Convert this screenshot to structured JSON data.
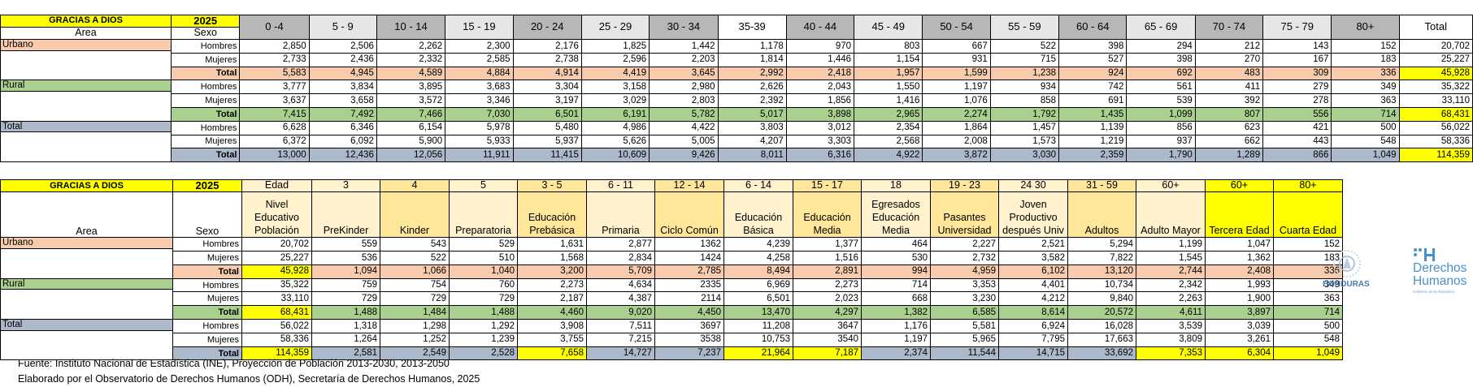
{
  "table1": {
    "title": "GRACIAS A DIOS",
    "year": "2025",
    "area_label": "Area",
    "sexo_label": "Sexo",
    "age_groups": [
      "0 -4",
      "5 - 9",
      "10 - 14",
      "15 - 19",
      "20 - 24",
      "25 - 29",
      "30 - 34",
      "35-39",
      "40 - 44",
      "45 - 49",
      "50 - 54",
      "55 - 59",
      "60 - 64",
      "65 - 69",
      "70 - 74",
      "75 - 79",
      "80+",
      "Total"
    ],
    "sections": [
      {
        "area": "Urbano",
        "rows": [
          {
            "sexo": "Hombres",
            "values": [
              "2,850",
              "2,506",
              "2,262",
              "2,300",
              "2,176",
              "1,825",
              "1,442",
              "1,178",
              "970",
              "803",
              "667",
              "522",
              "398",
              "294",
              "212",
              "143",
              "152",
              "20,702"
            ]
          },
          {
            "sexo": "Mujeres",
            "values": [
              "2,733",
              "2,436",
              "2,332",
              "2,585",
              "2,738",
              "2,596",
              "2,203",
              "1,814",
              "1,446",
              "1,154",
              "931",
              "715",
              "527",
              "398",
              "270",
              "167",
              "183",
              "25,227"
            ]
          },
          {
            "sexo": "Total",
            "values": [
              "5,583",
              "4,945",
              "4,589",
              "4,884",
              "4,914",
              "4,419",
              "3,645",
              "2,992",
              "2,418",
              "1,957",
              "1,599",
              "1,238",
              "924",
              "692",
              "483",
              "309",
              "336",
              "45,928"
            ]
          }
        ]
      },
      {
        "area": "Rural",
        "rows": [
          {
            "sexo": "Hombres",
            "values": [
              "3,777",
              "3,834",
              "3,895",
              "3,683",
              "3,304",
              "3,158",
              "2,980",
              "2,626",
              "2,043",
              "1,550",
              "1,197",
              "934",
              "742",
              "561",
              "411",
              "279",
              "349",
              "35,322"
            ]
          },
          {
            "sexo": "Mujeres",
            "values": [
              "3,637",
              "3,658",
              "3,572",
              "3,346",
              "3,197",
              "3,029",
              "2,803",
              "2,392",
              "1,856",
              "1,416",
              "1,076",
              "858",
              "691",
              "539",
              "392",
              "278",
              "363",
              "33,110"
            ]
          },
          {
            "sexo": "Total",
            "values": [
              "7,415",
              "7,492",
              "7,466",
              "7,030",
              "6,501",
              "6,191",
              "5,782",
              "5,017",
              "3,898",
              "2,965",
              "2,274",
              "1,792",
              "1,435",
              "1,099",
              "807",
              "556",
              "714",
              "68,431"
            ]
          }
        ]
      },
      {
        "area": "Total",
        "rows": [
          {
            "sexo": "Hombres",
            "values": [
              "6,628",
              "6,346",
              "6,154",
              "5,978",
              "5,480",
              "4,986",
              "4,422",
              "3,803",
              "3,012",
              "2,354",
              "1,864",
              "1,457",
              "1,139",
              "856",
              "623",
              "421",
              "500",
              "56,022"
            ]
          },
          {
            "sexo": "Mujeres",
            "values": [
              "6,372",
              "6,092",
              "5,900",
              "5,933",
              "5,937",
              "5,626",
              "5,005",
              "4,207",
              "3,303",
              "2,568",
              "2,008",
              "1,573",
              "1,219",
              "937",
              "662",
              "443",
              "548",
              "58,336"
            ]
          },
          {
            "sexo": "Total",
            "values": [
              "13,000",
              "12,436",
              "12,056",
              "11,911",
              "11,415",
              "10,609",
              "9,426",
              "8,011",
              "6,316",
              "4,922",
              "3,872",
              "3,030",
              "2,359",
              "1,790",
              "1,289",
              "866",
              "1,049",
              "114,359"
            ]
          }
        ]
      }
    ]
  },
  "table2": {
    "title": "GRACIAS A DIOS",
    "year": "2025",
    "area_label": "Area",
    "sexo_label": "Sexo",
    "age_headers": [
      "Edad",
      "3",
      "4",
      "5",
      "3 - 5",
      "6 - 11",
      "12 - 14",
      "6 - 14",
      "15 - 17",
      "18",
      "19 - 23",
      "24 30",
      "31 - 59",
      "60+",
      "60+",
      "80+"
    ],
    "level_headers": [
      "Nivel Educativo Población",
      "PreKinder",
      "Kinder",
      "Preparatoria",
      "Educación Prebásica",
      "Primaria",
      "Ciclo Común",
      "Educación Básica",
      "Educación Media",
      "Egresados Educación Media",
      "Pasantes Universidad",
      "Joven Productivo después Univ",
      "Adultos",
      "Adulto Mayor",
      "Tercera Edad",
      "Cuarta Edad"
    ],
    "sections": [
      {
        "area": "Urbano",
        "rows": [
          {
            "sexo": "Hombres",
            "values": [
              "20,702",
              "559",
              "543",
              "529",
              "1,631",
              "2,877",
              "1362",
              "4,239",
              "1,377",
              "464",
              "2,227",
              "2,521",
              "5,294",
              "1,199",
              "1,047",
              "152"
            ]
          },
          {
            "sexo": "Mujeres",
            "values": [
              "25,227",
              "536",
              "522",
              "510",
              "1,568",
              "2,834",
              "1424",
              "4,258",
              "1,516",
              "530",
              "2,732",
              "3,582",
              "7,822",
              "1,545",
              "1,362",
              "183"
            ]
          },
          {
            "sexo": "Total",
            "values": [
              "45,928",
              "1,094",
              "1,066",
              "1,040",
              "3,200",
              "5,709",
              "2,785",
              "8,494",
              "2,891",
              "994",
              "4,959",
              "6,102",
              "13,120",
              "2,744",
              "2,408",
              "336"
            ]
          }
        ]
      },
      {
        "area": "Rural",
        "rows": [
          {
            "sexo": "Hombres",
            "values": [
              "35,322",
              "759",
              "754",
              "760",
              "2,273",
              "4,634",
              "2335",
              "6,969",
              "2,273",
              "714",
              "3,353",
              "4,401",
              "10,734",
              "2,342",
              "1,993",
              "349"
            ]
          },
          {
            "sexo": "Mujeres",
            "values": [
              "33,110",
              "729",
              "729",
              "729",
              "2,187",
              "4,387",
              "2114",
              "6,501",
              "2,023",
              "668",
              "3,230",
              "4,212",
              "9,840",
              "2,263",
              "1,900",
              "363"
            ]
          },
          {
            "sexo": "Total",
            "values": [
              "68,431",
              "1,488",
              "1,484",
              "1,488",
              "4,460",
              "9,020",
              "4,450",
              "13,470",
              "4,297",
              "1,382",
              "6,585",
              "8,614",
              "20,572",
              "4,611",
              "3,897",
              "714"
            ]
          }
        ]
      },
      {
        "area": "Total",
        "rows": [
          {
            "sexo": "Hombres",
            "values": [
              "56,022",
              "1,318",
              "1,298",
              "1,292",
              "3,908",
              "7,511",
              "3697",
              "11,208",
              "3647",
              "1,176",
              "5,581",
              "6,924",
              "16,028",
              "3,539",
              "3,039",
              "500"
            ]
          },
          {
            "sexo": "Mujeres",
            "values": [
              "58,336",
              "1,264",
              "1,252",
              "1,239",
              "3,755",
              "7,215",
              "3538",
              "10,753",
              "3540",
              "1,197",
              "5,965",
              "7,795",
              "17,663",
              "3,809",
              "3,261",
              "548"
            ]
          },
          {
            "sexo": "Total",
            "values": [
              "114,359",
              "2,581",
              "2,549",
              "2,528",
              "7,658",
              "14,727",
              "7,237",
              "21,964",
              "7,187",
              "2,374",
              "11,544",
              "14,715",
              "33,692",
              "7,353",
              "6,304",
              "1,049"
            ]
          }
        ]
      }
    ]
  },
  "footer": {
    "source": "Fuente: Instituto Nacional de Estadística (INE), Proyección de Población 2013-2030, 2013-2050",
    "credit": "Elaborado por el Observatorio de Derechos Humanos (ODH), Secretaría de Derechos Humanos, 2025"
  },
  "logos": {
    "honduras": "HONDURAS",
    "dh_line1": "Derechos",
    "dh_line2": "Humanos",
    "dh_sub": "Gobierno de la República"
  }
}
